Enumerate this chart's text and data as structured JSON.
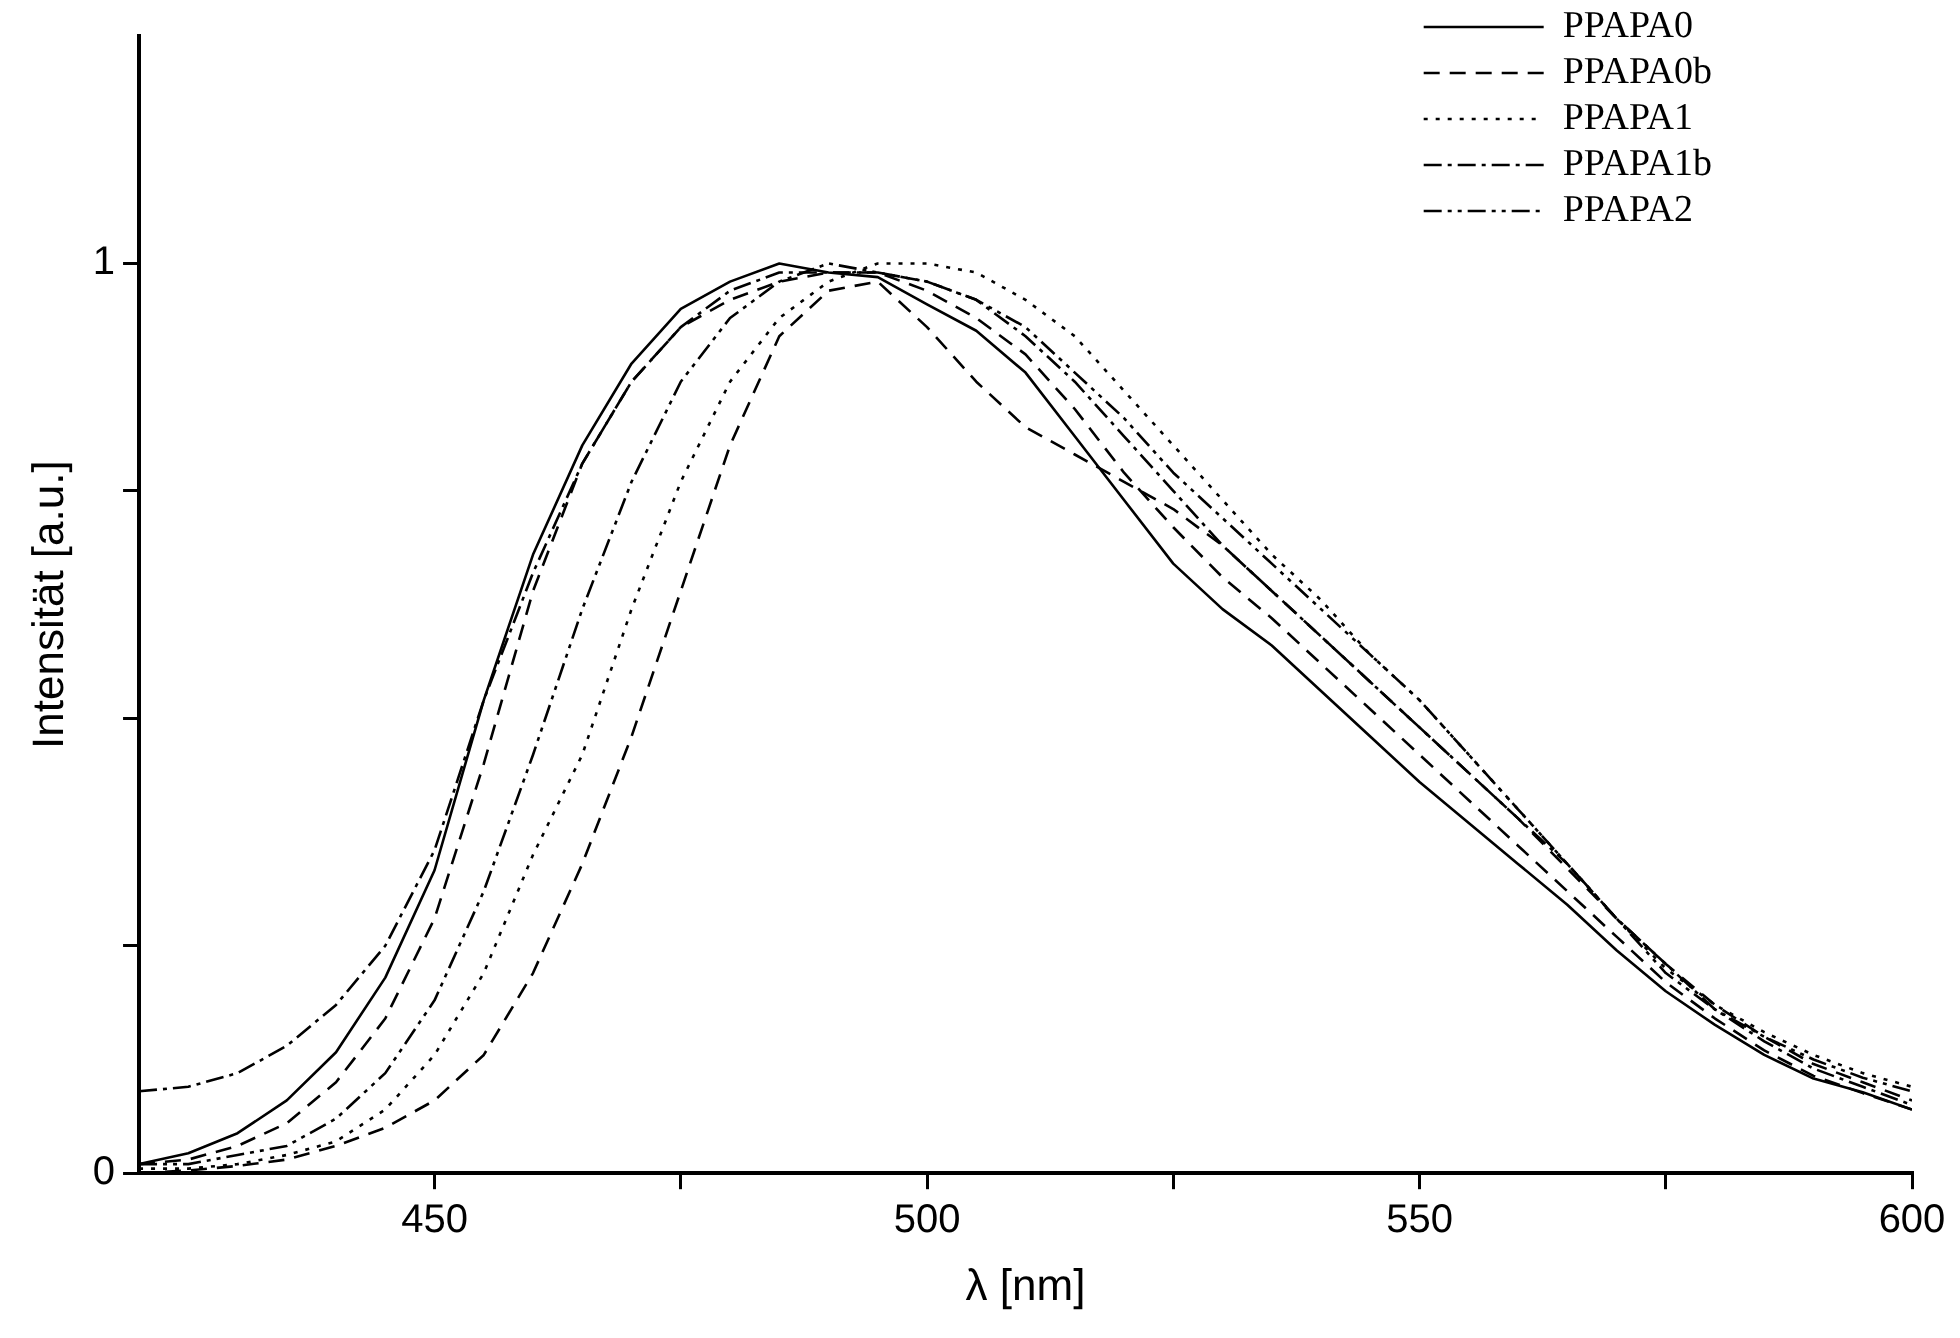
{
  "chart_data": {
    "type": "line",
    "xlabel": "λ [nm]",
    "ylabel": "Intensität [a.u.]",
    "x": [
      420,
      425,
      430,
      435,
      440,
      445,
      450,
      455,
      460,
      465,
      470,
      475,
      480,
      485,
      490,
      495,
      500,
      505,
      510,
      515,
      520,
      525,
      530,
      535,
      540,
      545,
      550,
      555,
      560,
      565,
      570,
      575,
      580,
      585,
      590,
      595,
      600
    ],
    "series": [
      {
        "name": "PPAPA0",
        "color": "#000000",
        "line_style": "solid",
        "values": [
          0.01,
          0.022,
          0.044,
          0.08,
          0.133,
          0.215,
          0.333,
          0.52,
          0.68,
          0.8,
          0.89,
          0.95,
          0.98,
          1.0,
          0.99,
          0.985,
          0.955,
          0.926,
          0.88,
          0.81,
          0.74,
          0.67,
          0.62,
          0.58,
          0.53,
          0.48,
          0.43,
          0.385,
          0.34,
          0.295,
          0.245,
          0.2,
          0.163,
          0.13,
          0.104,
          0.089,
          0.07
        ]
      },
      {
        "name": "PPAPA0b",
        "color": "#000000",
        "line_style": "dashed",
        "values": [
          0.01,
          0.015,
          0.03,
          0.055,
          0.1,
          0.17,
          0.28,
          0.45,
          0.64,
          0.78,
          0.87,
          0.93,
          0.96,
          0.98,
          0.99,
          0.99,
          0.97,
          0.94,
          0.9,
          0.84,
          0.77,
          0.71,
          0.655,
          0.61,
          0.56,
          0.51,
          0.46,
          0.41,
          0.36,
          0.31,
          0.26,
          0.21,
          0.17,
          0.135,
          0.107,
          0.088,
          0.07
        ]
      },
      {
        "name": "PPAPA1",
        "color": "#000000",
        "line_style": "dotted",
        "values": [
          0.005,
          0.005,
          0.01,
          0.02,
          0.035,
          0.07,
          0.13,
          0.22,
          0.35,
          0.46,
          0.62,
          0.76,
          0.87,
          0.94,
          0.98,
          1.0,
          1.0,
          0.99,
          0.96,
          0.92,
          0.86,
          0.8,
          0.74,
          0.68,
          0.63,
          0.57,
          0.52,
          0.46,
          0.4,
          0.34,
          0.28,
          0.225,
          0.185,
          0.155,
          0.13,
          0.11,
          0.095
        ]
      },
      {
        "name": "PPAPA1b",
        "color": "#000000",
        "line_style": "dashdot",
        "values": [
          0.09,
          0.095,
          0.11,
          0.14,
          0.185,
          0.25,
          0.355,
          0.52,
          0.66,
          0.78,
          0.87,
          0.93,
          0.97,
          0.99,
          0.99,
          0.99,
          0.98,
          0.96,
          0.92,
          0.87,
          0.81,
          0.75,
          0.69,
          0.64,
          0.59,
          0.54,
          0.49,
          0.44,
          0.39,
          0.34,
          0.28,
          0.23,
          0.18,
          0.145,
          0.115,
          0.095,
          0.075
        ]
      },
      {
        "name": "PPAPA2",
        "color": "#000000",
        "line_style": "dashdotdot",
        "values": [
          0.01,
          0.01,
          0.02,
          0.03,
          0.06,
          0.11,
          0.19,
          0.31,
          0.46,
          0.62,
          0.76,
          0.87,
          0.94,
          0.98,
          1.0,
          0.99,
          0.98,
          0.96,
          0.93,
          0.88,
          0.83,
          0.77,
          0.72,
          0.67,
          0.62,
          0.57,
          0.52,
          0.46,
          0.4,
          0.34,
          0.28,
          0.22,
          0.18,
          0.15,
          0.125,
          0.105,
          0.09
        ]
      },
      {
        "color": "#000000",
        "line_style": "dashed",
        "values": [
          0.0,
          0.003,
          0.008,
          0.015,
          0.03,
          0.05,
          0.08,
          0.13,
          0.22,
          0.34,
          0.48,
          0.64,
          0.8,
          0.92,
          0.97,
          0.98,
          0.93,
          0.87,
          0.82,
          0.79,
          0.76,
          0.73,
          0.69,
          0.64,
          0.59,
          0.54,
          0.49,
          0.44,
          0.39,
          0.335,
          0.28,
          0.23,
          0.185,
          0.15,
          0.12,
          0.1,
          0.08
        ]
      }
    ],
    "xlim": [
      420,
      600
    ],
    "xticks": [
      450,
      {
        "value": 475,
        "label": null
      },
      500,
      {
        "value": 525,
        "label": null
      },
      550,
      {
        "value": 575,
        "label": null
      },
      600
    ],
    "ylim": [
      0,
      1.25
    ],
    "yticks": [
      0,
      {
        "value": 0.25,
        "label": null
      },
      {
        "value": 0.5,
        "label": null
      },
      {
        "value": 0.75,
        "label": null
      },
      1
    ],
    "grid": false,
    "legend": "top right",
    "marker": "none"
  }
}
